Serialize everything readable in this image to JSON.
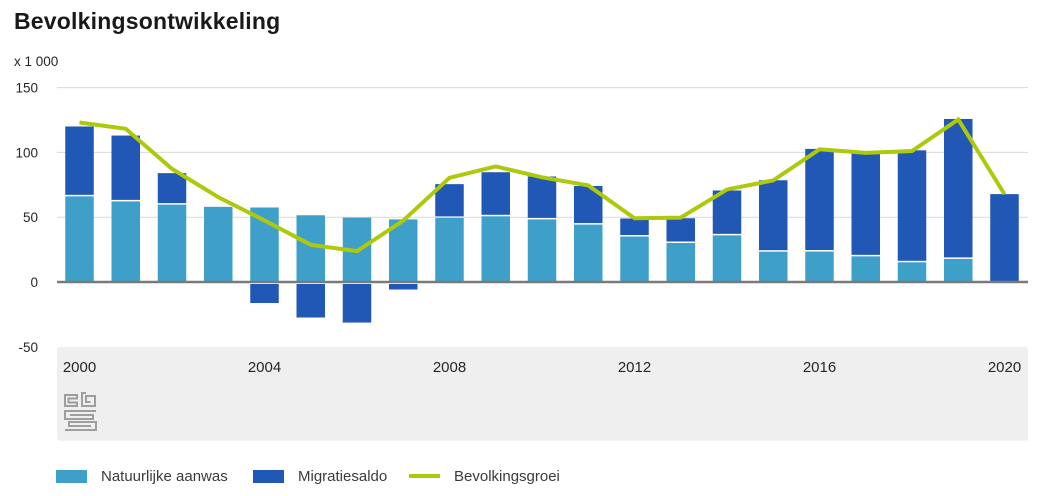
{
  "title": "Bevolkingsontwikkeling",
  "unit_label": "x 1 000",
  "colors": {
    "natural_increase": "#3ea0c9",
    "migration_balance": "#2157b5",
    "population_growth": "#aec90c",
    "gridline": "#d9d9d9",
    "zero_line": "#7a7a7a",
    "axis_band": "#efefef",
    "tick_text": "#262626"
  },
  "legend": {
    "items": [
      {
        "label": "Natuurlijke aanwas",
        "shape": "rect",
        "color": "#3ea0c9"
      },
      {
        "label": "Migratiesaldo",
        "shape": "rect",
        "color": "#2157b5"
      },
      {
        "label": "Bevolkingsgroei",
        "shape": "line",
        "color": "#aec90c"
      }
    ]
  },
  "chart_data": {
    "type": "bar",
    "subtype": "stacked-bars-with-line-overlay",
    "title": "Bevolkingsontwikkeling",
    "unit": "x 1 000",
    "x": [
      2000,
      2001,
      2002,
      2003,
      2004,
      2005,
      2006,
      2007,
      2008,
      2009,
      2010,
      2011,
      2012,
      2013,
      2014,
      2015,
      2016,
      2017,
      2018,
      2019,
      2020
    ],
    "x_tick_labels": [
      "2000",
      "2004",
      "2008",
      "2012",
      "2016",
      "2020"
    ],
    "y_ticks": [
      150,
      100,
      50,
      0,
      -50
    ],
    "ylim": [
      -50,
      150
    ],
    "grid": true,
    "legend_position": "bottom",
    "series": [
      {
        "name": "Natuurlijke aanwas",
        "type": "bar",
        "color": "#3ea0c9",
        "values": [
          66.1,
          62.2,
          59.7,
          58.0,
          57.5,
          51.5,
          49.7,
          48.3,
          49.5,
          50.7,
          48.3,
          44.3,
          35.1,
          30.1,
          36.0,
          23.4,
          23.5,
          19.8,
          15.2,
          17.8,
          0.0
        ]
      },
      {
        "name": "Migratiesaldo",
        "type": "bar",
        "color": "#2157b5",
        "values": [
          53.9,
          50.8,
          24.3,
          -0.3,
          -16.2,
          -27.4,
          -31.3,
          -5.8,
          26.0,
          34.0,
          33.1,
          29.8,
          13.9,
          19.1,
          34.6,
          55.1,
          79.2,
          80.7,
          86.4,
          108.0,
          67.8
        ]
      },
      {
        "name": "Bevolkingsgroei",
        "type": "line",
        "color": "#aec90c",
        "values": [
          123.1,
          118.2,
          87.3,
          65.5,
          47.5,
          28.7,
          23.8,
          47.4,
          80.4,
          89.2,
          80.8,
          74.5,
          49.2,
          49.7,
          71.4,
          78.4,
          102.4,
          99.6,
          101.1,
          125.4,
          67.8
        ]
      }
    ]
  }
}
